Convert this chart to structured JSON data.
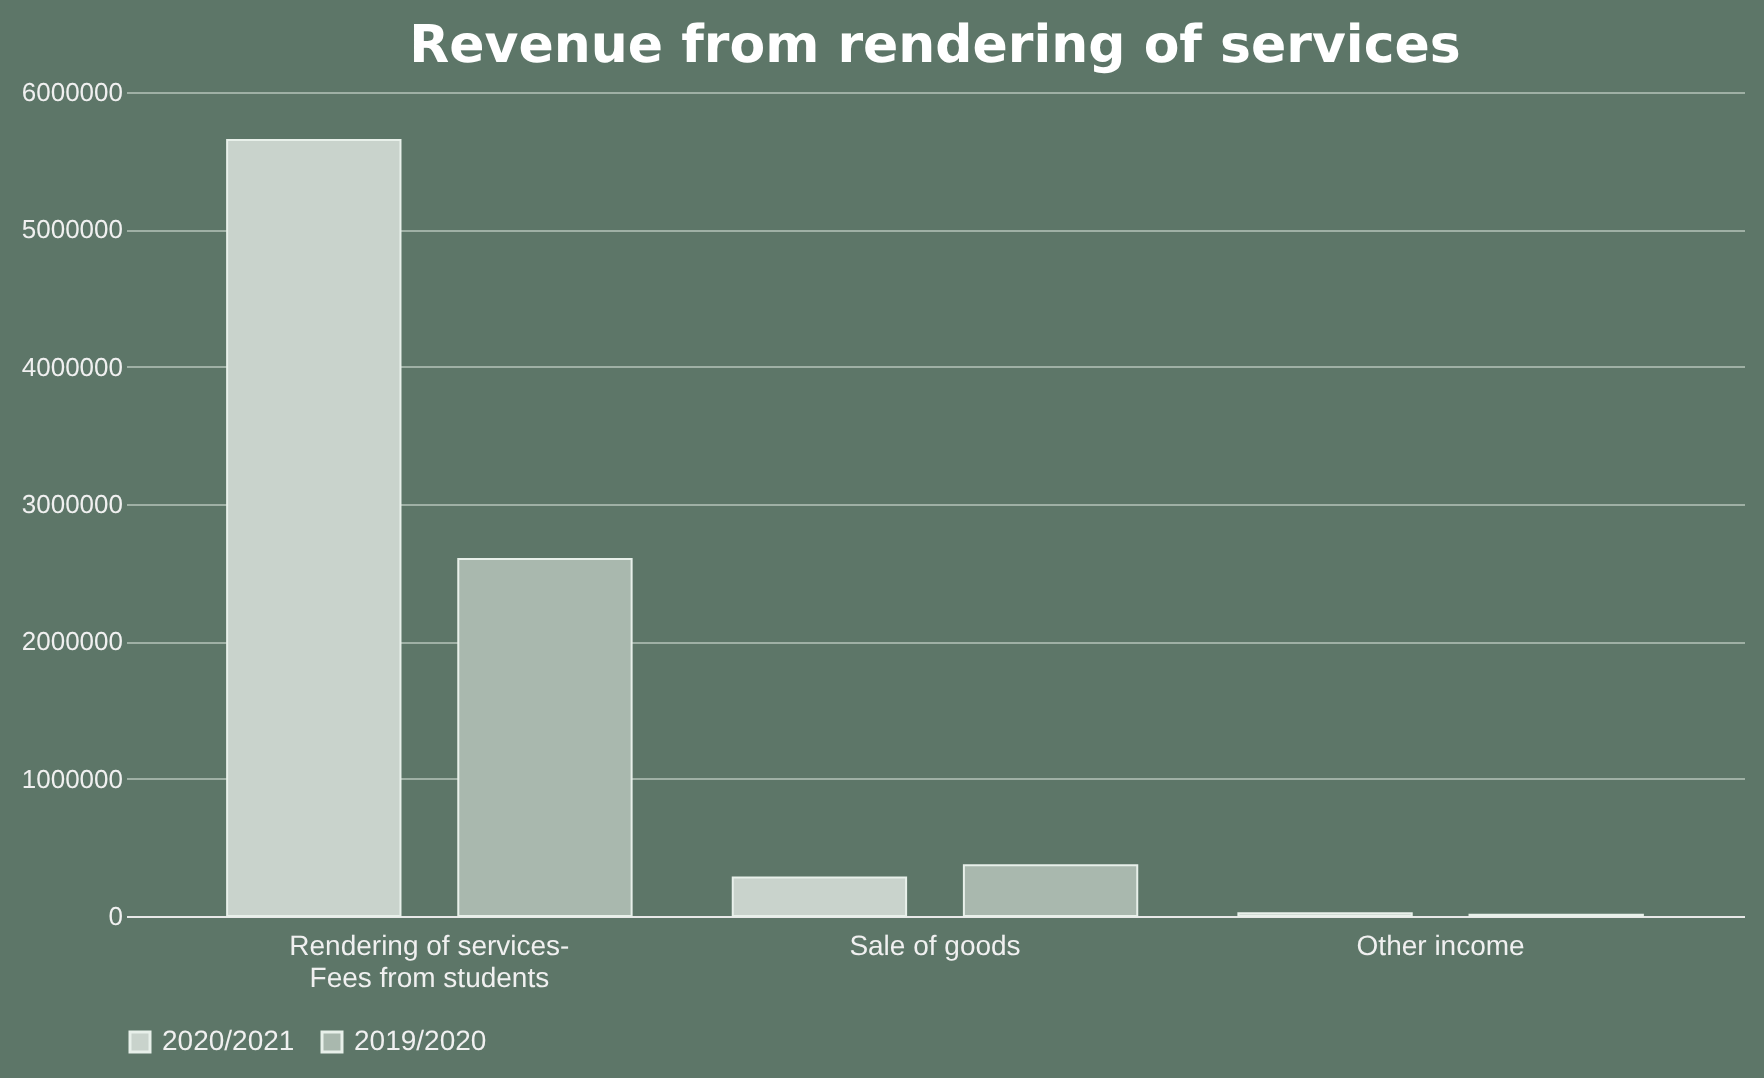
{
  "chart_data": {
    "type": "bar",
    "title": "Revenue from rendering of services",
    "categories": [
      "Rendering of services- Fees from students",
      "Sale of goods",
      "Other income"
    ],
    "series": [
      {
        "name": "2020/2021",
        "color": "#c9d3cc",
        "values": [
          5650000,
          280000,
          20000
        ]
      },
      {
        "name": "2019/2020",
        "color": "#a9b8ae",
        "values": [
          2600000,
          370000,
          10000
        ]
      }
    ],
    "ylim": [
      0,
      6000000
    ],
    "yticks": [
      0,
      1000000,
      2000000,
      3000000,
      4000000,
      5000000,
      6000000
    ],
    "grid": "y",
    "legend": "bottom"
  }
}
